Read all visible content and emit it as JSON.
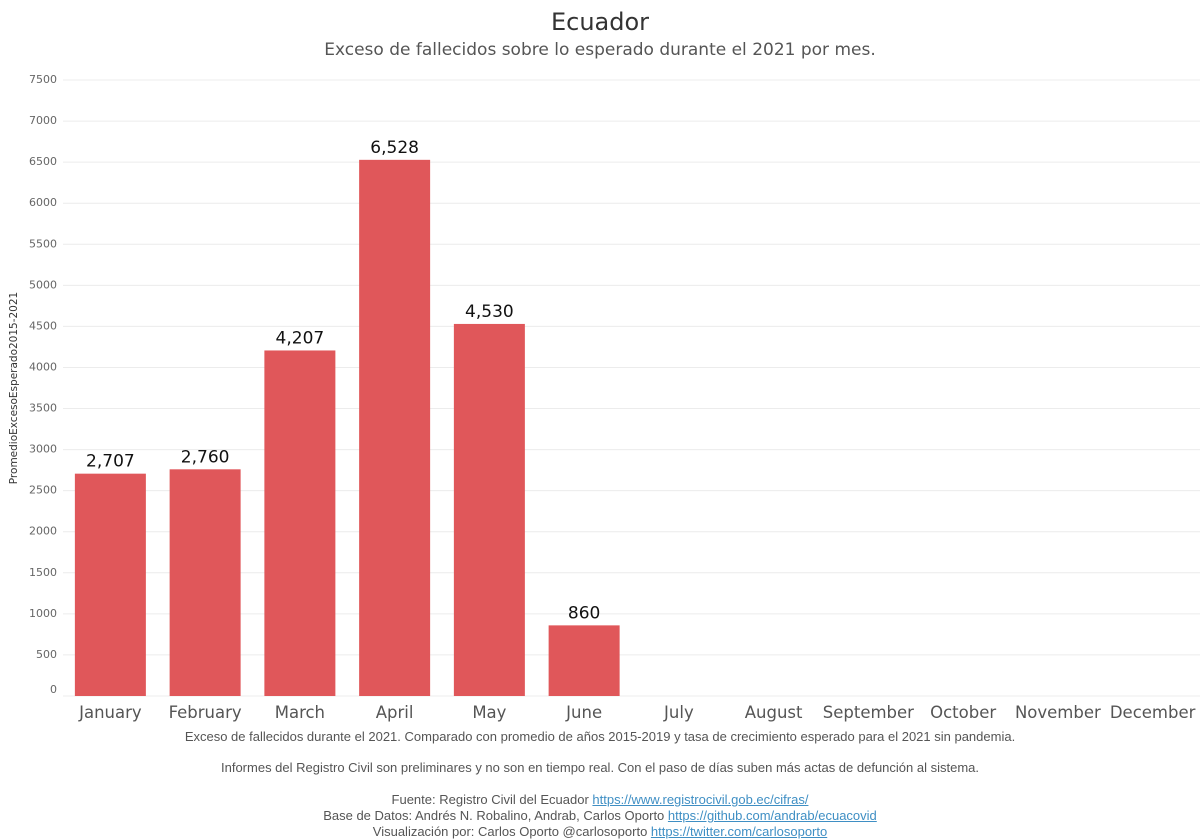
{
  "title": "Ecuador",
  "subtitle": "Exceso de fallecidos sobre lo esperado durante el 2021 por mes.",
  "colors": {
    "bar": "#e0575a",
    "grid": "#ececec",
    "axis_text": "#666666",
    "month_text": "#555555",
    "label_text": "#111111",
    "link": "#3f8fc4"
  },
  "chart_data": {
    "type": "bar",
    "categories": [
      "January",
      "February",
      "March",
      "April",
      "May",
      "June",
      "July",
      "August",
      "September",
      "October",
      "November",
      "December"
    ],
    "values": [
      2707,
      2760,
      4207,
      6528,
      4530,
      860,
      null,
      null,
      null,
      null,
      null,
      null
    ],
    "value_labels": [
      "2,707",
      "2,760",
      "4,207",
      "6,528",
      "4,530",
      "860",
      "",
      "",
      "",
      "",
      "",
      ""
    ],
    "ylabel": "PromedioExcesoEsperado2015-2021",
    "xlabel": "",
    "ylim": [
      0,
      7500
    ],
    "yticks": [
      0,
      500,
      1000,
      1500,
      2000,
      2500,
      3000,
      3500,
      4000,
      4500,
      5000,
      5500,
      6000,
      6500,
      7000,
      7500
    ],
    "grid": true
  },
  "notes": {
    "line1": "Exceso de fallecidos durante el 2021. Comparado con promedio de años 2015-2019 y tasa de crecimiento esperado para el 2021 sin pandemia.",
    "line2": "Informes del Registro Civil son preliminares y no son en tiempo real. Con el paso de días suben más actas de defunción al sistema.",
    "source_prefix": "Fuente: Registro Civil del Ecuador",
    "source_link": "https://www.registrocivil.gob.ec/cifras/",
    "data_prefix": "Base de Datos: Andrés N. Robalino, Andrab, Carlos Oporto",
    "data_link": "https://github.com/andrab/ecuacovid",
    "viz_prefix": "Visualización por: Carlos Oporto @carlosoporto",
    "viz_link": "https://twitter.com/carlosoporto"
  }
}
